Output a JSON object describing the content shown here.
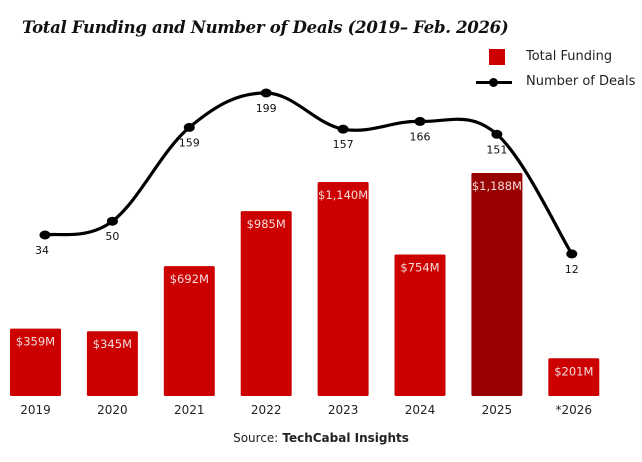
{
  "chart_data": {
    "type": "bar+line",
    "title": "Total Funding and Number of Deals (2019– Feb. 2026)",
    "categories": [
      "2019",
      "2020",
      "2021",
      "2022",
      "2023",
      "2024",
      "2025",
      "*2026"
    ],
    "series": [
      {
        "name": "Total Funding",
        "type": "bar",
        "unit": "USD millions",
        "values": [
          359,
          345,
          692,
          985,
          1140,
          754,
          1188,
          201
        ],
        "labels": [
          "$359M",
          "$345M",
          "$692M",
          "$985M",
          "$1,140M",
          "$754M",
          "$1,188M",
          "$201M"
        ],
        "color": "#cc0000",
        "highlight_index": 6,
        "highlight_color": "#990000"
      },
      {
        "name": "Number of Deals",
        "type": "line",
        "values": [
          34,
          50,
          159,
          199,
          157,
          166,
          151,
          12
        ],
        "labels": [
          "34",
          "50",
          "159",
          "199",
          "157",
          "166",
          "151",
          "12"
        ],
        "color": "#000000",
        "smooth": true
      }
    ],
    "xlabel": "",
    "ylabel": "",
    "grid": false,
    "legend_position": "top-right",
    "legend": [
      "Total Funding",
      "Number of Deals"
    ]
  },
  "source": {
    "prefix": "Source:",
    "name": "TechCabal Insights"
  }
}
